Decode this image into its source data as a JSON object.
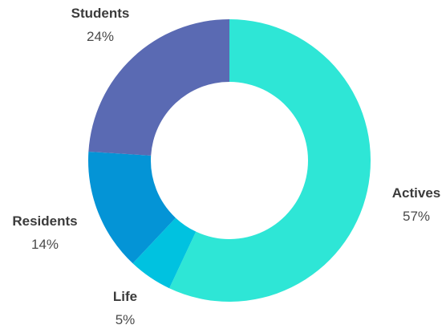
{
  "chart_data": {
    "type": "pie",
    "style": "donut",
    "title": "",
    "slices": [
      {
        "label": "Actives",
        "value": 57,
        "value_label": "57%",
        "color": "#2ee6d6"
      },
      {
        "label": "Life",
        "value": 5,
        "value_label": "5%",
        "color": "#00c2e0"
      },
      {
        "label": "Residents",
        "value": 14,
        "value_label": "14%",
        "color": "#0494d6"
      },
      {
        "label": "Students",
        "value": 24,
        "value_label": "24%",
        "color": "#5a6ab3"
      }
    ],
    "legend": "none"
  }
}
